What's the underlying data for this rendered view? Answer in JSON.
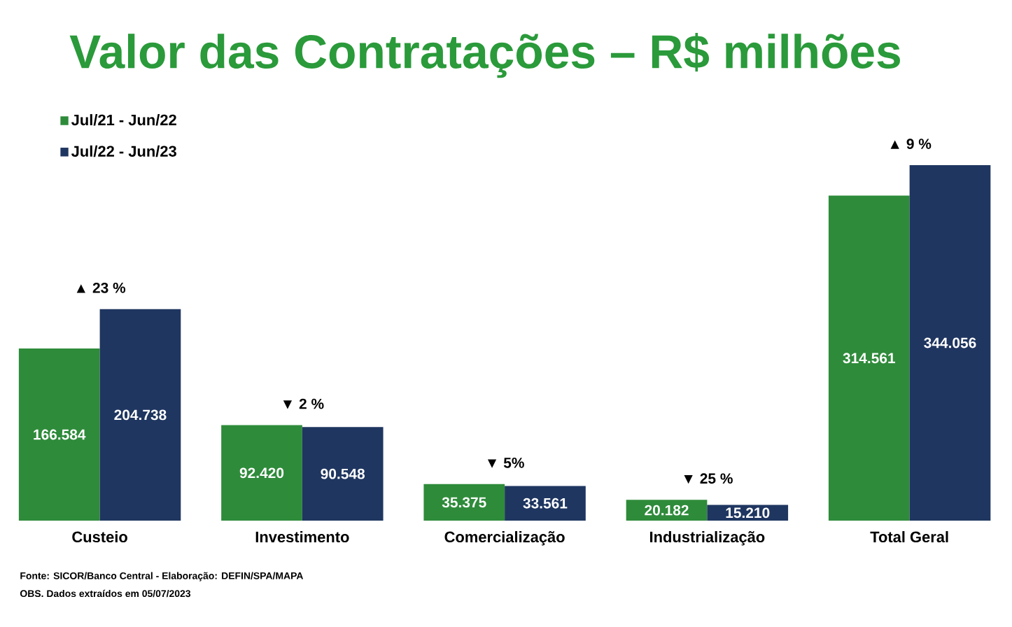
{
  "chart_data": {
    "type": "bar",
    "title": "Valor das Contratações – R$ milhões",
    "categories": [
      "Custeio",
      "Investimento",
      "Comercialização",
      "Industrialização",
      "Total Geral"
    ],
    "series": [
      {
        "name": "Jul/21 - Jun/22",
        "color": "#2e8b3a",
        "values": [
          166584,
          92420,
          35375,
          20182,
          314561
        ],
        "value_labels": [
          "166.584",
          "92.420",
          "35.375",
          "20.182",
          "314.561"
        ]
      },
      {
        "name": "Jul/22 - Jun/23",
        "color": "#1f3660",
        "values": [
          204738,
          90548,
          33561,
          15210,
          344056
        ],
        "value_labels": [
          "204.738",
          "90.548",
          "33.561",
          "15.210",
          "344.056"
        ]
      }
    ],
    "annotations": [
      "▲ 23 %",
      "▼ 2 %",
      "▼ 5%",
      "▼ 25 %",
      "▲ 9 %",
      "Fonte: SICOR/Banco Central - Elaboração: DEFIN/SPA/MAPA",
      "OBS. Dados extraídos em 05/07/2023"
    ],
    "legend": "top left",
    "tick_labels": "x",
    "grid": false
  }
}
